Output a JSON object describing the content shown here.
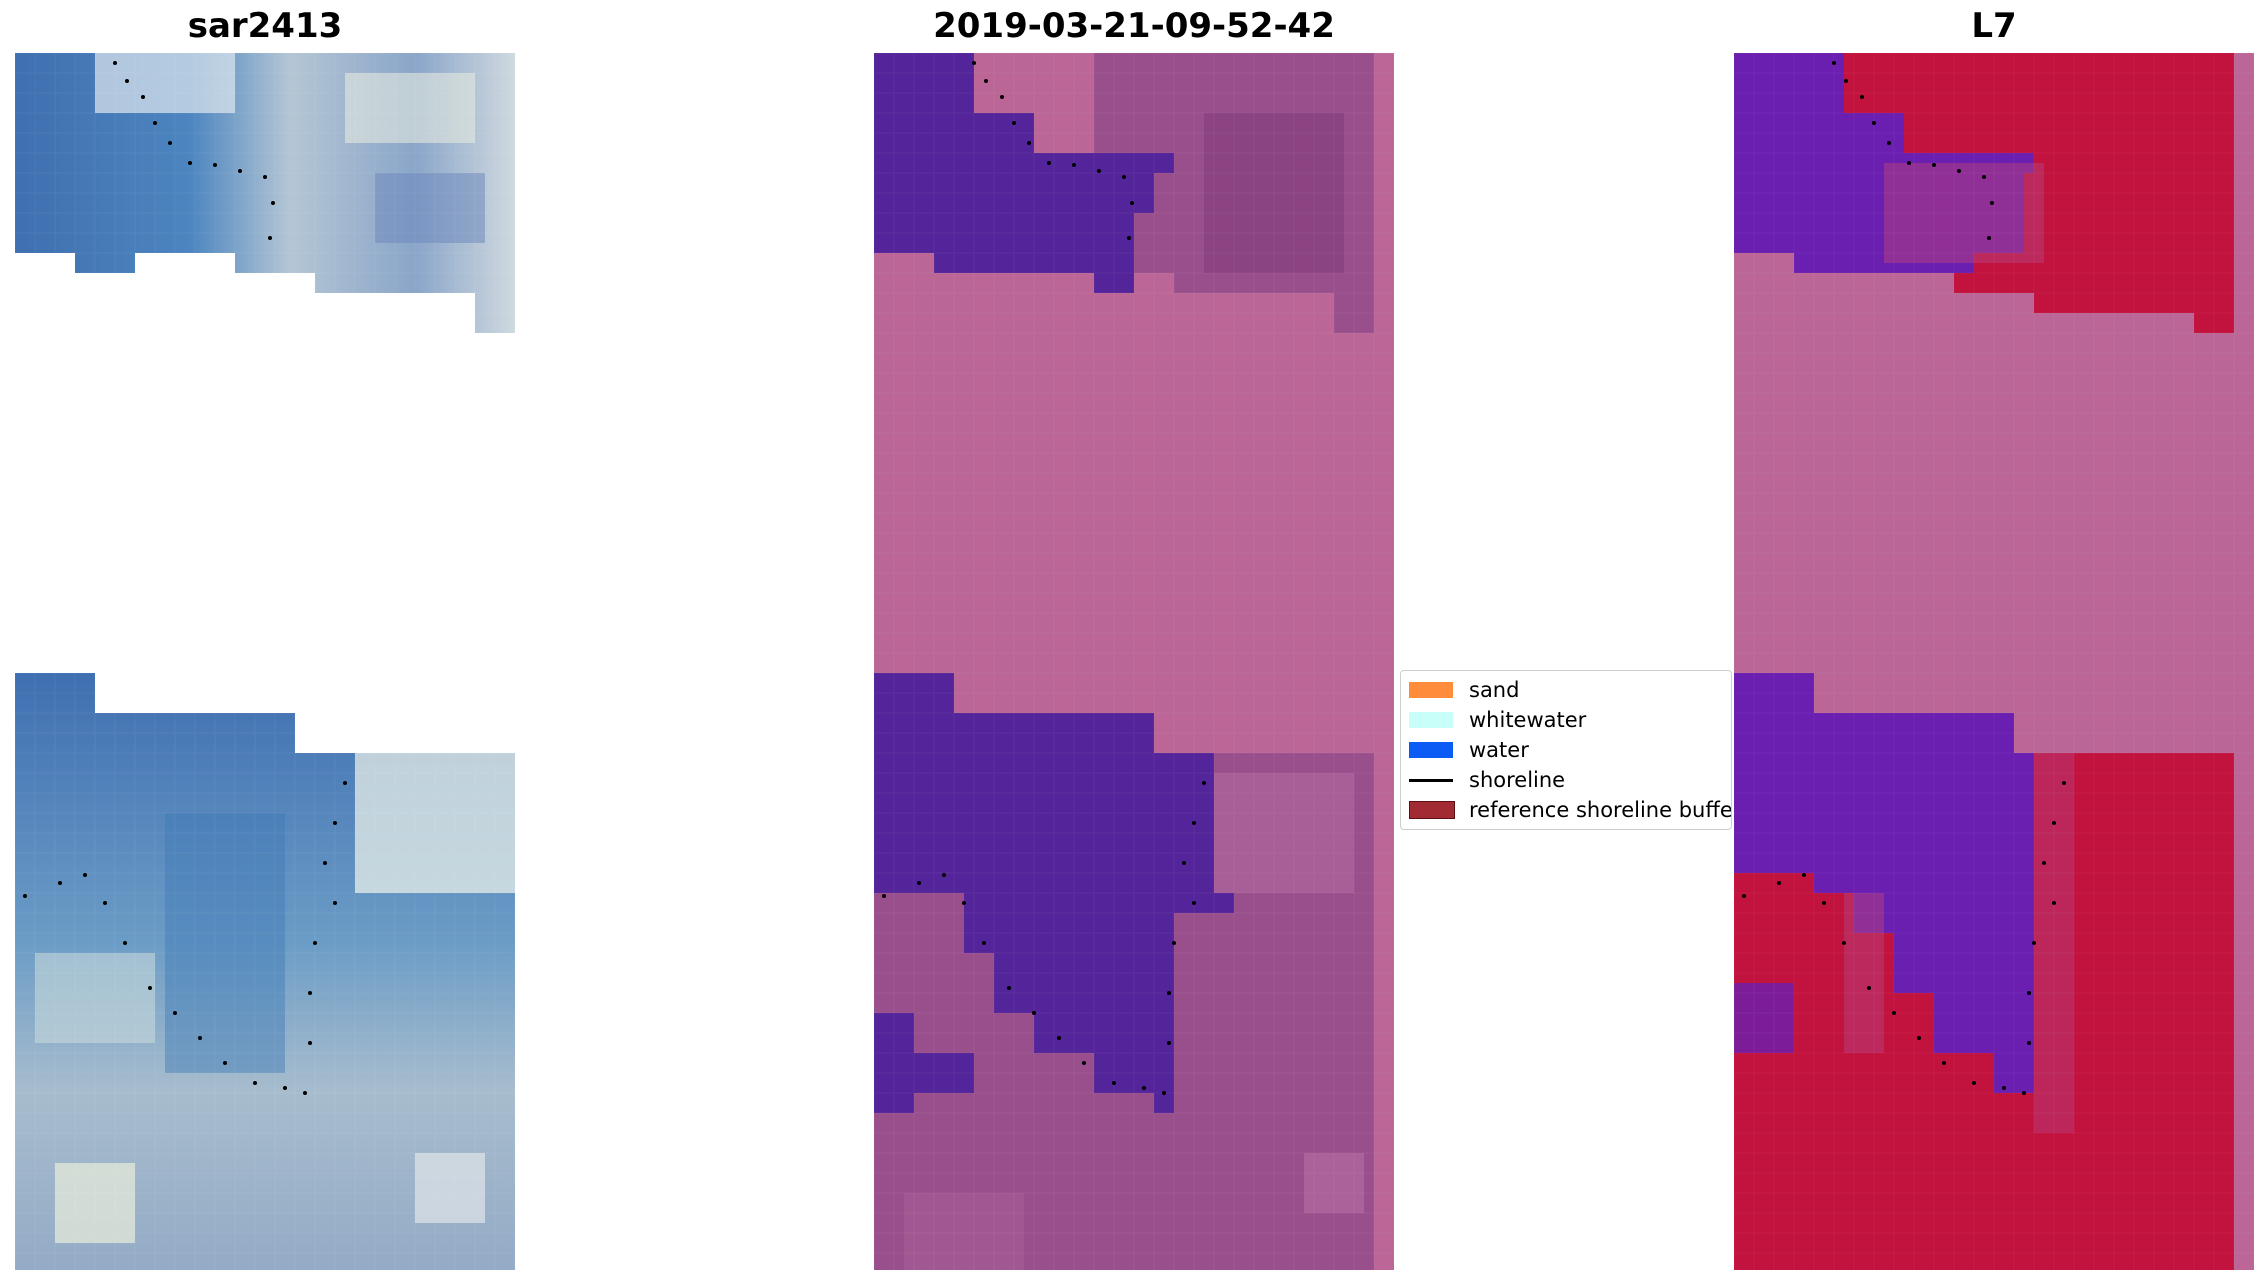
{
  "panels": [
    {
      "id": "rgb",
      "title": "sar2413"
    },
    {
      "id": "classified",
      "title": "2019-03-21-09-52-42"
    },
    {
      "id": "index",
      "title": "L7"
    }
  ],
  "legend": {
    "items": [
      {
        "label": "sand",
        "kind": "patch",
        "color": "#ff8c3b"
      },
      {
        "label": "whitewater",
        "kind": "patch",
        "color": "#c8fff8"
      },
      {
        "label": "water",
        "kind": "patch",
        "color": "#0a5cf5"
      },
      {
        "label": "shoreline",
        "kind": "line",
        "color": "#000000"
      },
      {
        "label": "reference shoreline buffer",
        "kind": "patch",
        "color": "#a22a32"
      }
    ]
  },
  "colors": {
    "rgb_water": "#4a7fbe",
    "rgb_sand": "#c9d3d8",
    "classified_water": "#54249a",
    "classified_land": "#9a4f8d",
    "buffer_overlay": "#bb6696",
    "index_low": "#6a1fb0",
    "index_high": "#c2123e"
  }
}
